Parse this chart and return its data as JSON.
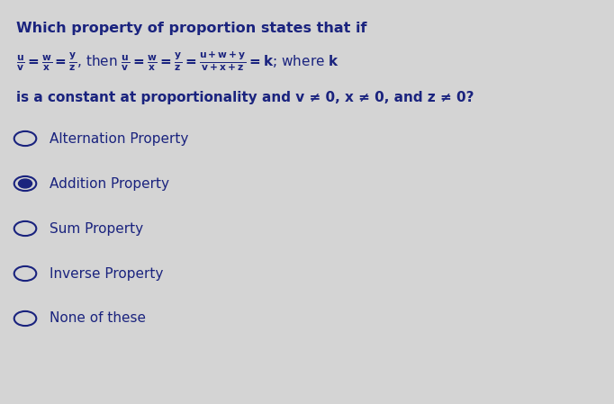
{
  "background_color": "#d4d4d4",
  "title_text": "Which property of proportion states that if",
  "math_line2": "is a constant at proportionality and v ≠ 0, x ≠ 0, and z ≠ 0?",
  "options": [
    "Alternation Property",
    "Addition Property",
    "Sum Property",
    "Inverse Property",
    "None of these"
  ],
  "selected_option": 1,
  "text_color": "#1a237e",
  "radio_color": "#1a237e",
  "font_size_title": 11.5,
  "font_size_math": 11,
  "font_size_options": 11
}
